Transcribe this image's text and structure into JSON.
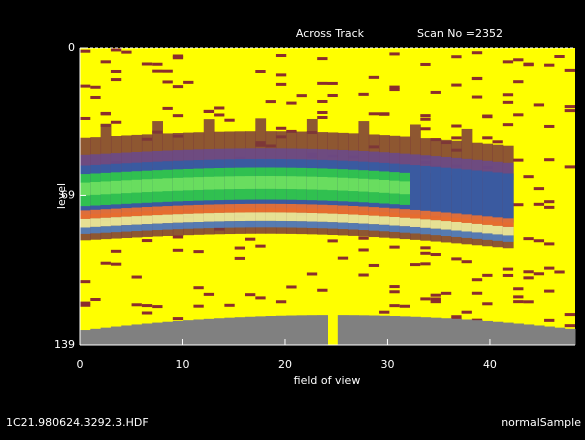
{
  "chart_data": {
    "type": "image",
    "title": "Across Track",
    "subtitle": "Scan No =2352",
    "xlabel": "field of view",
    "ylabel": "level",
    "xlim": [
      0,
      48.3
    ],
    "xticks": [
      0,
      10,
      20,
      30,
      40
    ],
    "ylim": [
      139,
      0
    ],
    "yticks": [
      0,
      69,
      139
    ],
    "footer_left": "1C21.980624.3292.3.HDF",
    "footer_right": "normalSample"
  }
}
